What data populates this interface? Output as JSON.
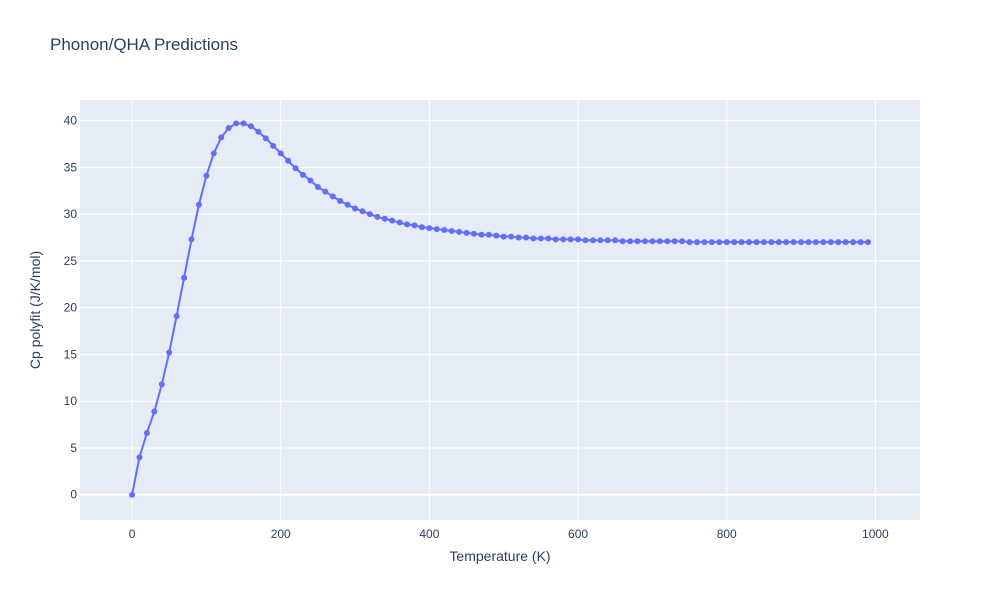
{
  "chart_data": {
    "type": "line",
    "title": "Phonon/QHA Predictions",
    "xlabel": "Temperature (K)",
    "ylabel": "Cp polyfit (J/K/mol)",
    "xlim": [
      -70,
      1060
    ],
    "ylim": [
      -2.7,
      42.2
    ],
    "xticks": [
      0,
      200,
      400,
      600,
      800,
      1000
    ],
    "xtick_labels": [
      "0",
      "200",
      "400",
      "600",
      "800",
      "1000"
    ],
    "yticks": [
      0,
      5,
      10,
      15,
      20,
      25,
      30,
      35,
      40
    ],
    "ytick_labels": [
      "0",
      "5",
      "10",
      "15",
      "20",
      "25",
      "30",
      "35",
      "40"
    ],
    "grid": true,
    "legend": "none",
    "colors": {
      "series": "#636efa",
      "plot_bg": "#e5ecf6",
      "grid": "#ffffff",
      "text": "#2a3f5f"
    },
    "series": [
      {
        "mode": "lines+markers",
        "x": [
          0,
          10,
          20,
          30,
          40,
          50,
          60,
          70,
          80,
          90,
          100,
          110,
          120,
          130,
          140,
          150,
          160,
          170,
          180,
          190,
          200,
          210,
          220,
          230,
          240,
          250,
          260,
          270,
          280,
          290,
          300,
          310,
          320,
          330,
          340,
          350,
          360,
          370,
          380,
          390,
          400,
          410,
          420,
          430,
          440,
          450,
          460,
          470,
          480,
          490,
          500,
          510,
          520,
          530,
          540,
          550,
          560,
          570,
          580,
          590,
          600,
          610,
          620,
          630,
          640,
          650,
          660,
          670,
          680,
          690,
          700,
          710,
          720,
          730,
          740,
          750,
          760,
          770,
          780,
          790,
          800,
          810,
          820,
          830,
          840,
          850,
          860,
          870,
          880,
          890,
          900,
          910,
          920,
          930,
          940,
          950,
          960,
          970,
          980,
          990
        ],
        "y": [
          0.0,
          4.0,
          6.6,
          8.9,
          11.8,
          15.2,
          19.1,
          23.2,
          27.3,
          31.0,
          34.1,
          36.5,
          38.2,
          39.2,
          39.7,
          39.7,
          39.4,
          38.8,
          38.1,
          37.3,
          36.5,
          35.7,
          34.9,
          34.2,
          33.6,
          32.9,
          32.4,
          31.9,
          31.4,
          31.0,
          30.6,
          30.3,
          30.0,
          29.7,
          29.5,
          29.3,
          29.1,
          28.9,
          28.8,
          28.6,
          28.5,
          28.4,
          28.3,
          28.2,
          28.1,
          28.0,
          27.9,
          27.8,
          27.8,
          27.7,
          27.6,
          27.6,
          27.5,
          27.5,
          27.4,
          27.4,
          27.4,
          27.3,
          27.3,
          27.3,
          27.3,
          27.2,
          27.2,
          27.2,
          27.2,
          27.2,
          27.1,
          27.1,
          27.1,
          27.1,
          27.1,
          27.1,
          27.1,
          27.1,
          27.1,
          27.0,
          27.0,
          27.0,
          27.0,
          27.0,
          27.0,
          27.0,
          27.0,
          27.0,
          27.0,
          27.0,
          27.0,
          27.0,
          27.0,
          27.0,
          27.0,
          27.0,
          27.0,
          27.0,
          27.0,
          27.0,
          27.0,
          27.0,
          27.0,
          27.0
        ]
      }
    ]
  }
}
